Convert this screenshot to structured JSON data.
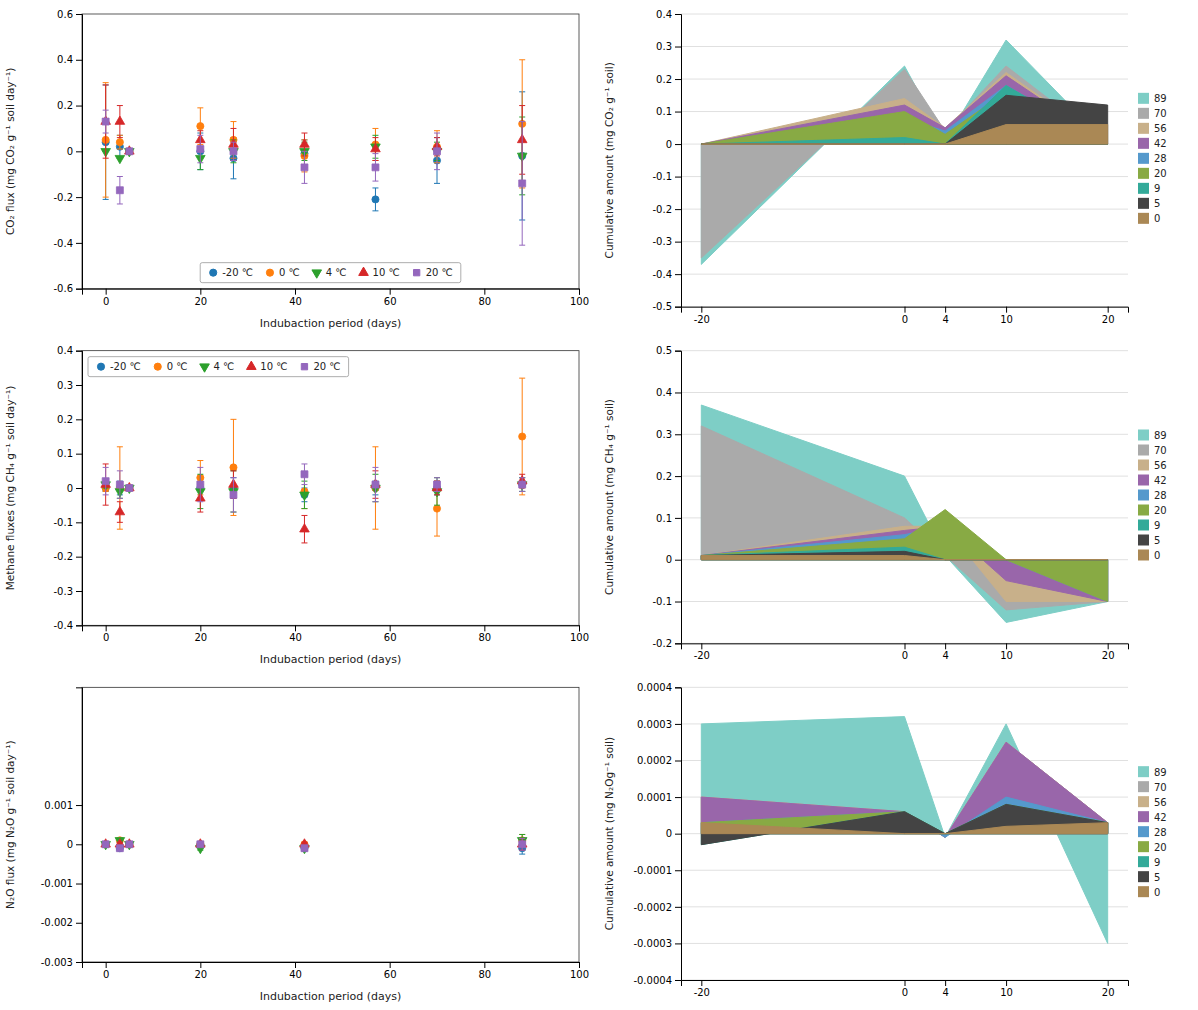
{
  "chart_data": [
    {
      "type": "scatter",
      "xlabel": "Indubaction period (days)",
      "ylabel": "CO₂ flux (mg CO₂ g⁻¹ soil day⁻¹)",
      "x": [
        0,
        3,
        5,
        20,
        27,
        42,
        57,
        70,
        88
      ],
      "series": [
        {
          "name": "-20 ℃",
          "marker": "circle",
          "values": [
            0.04,
            0.02,
            0.0,
            0.0,
            -0.03,
            -0.01,
            -0.21,
            -0.04,
            -0.02
          ],
          "errors": [
            0.25,
            0.05,
            0.0,
            0.08,
            0.09,
            0.06,
            0.05,
            0.1,
            0.28
          ]
        },
        {
          "name": "0 ℃",
          "marker": "circle",
          "values": [
            0.05,
            0.04,
            0.0,
            0.11,
            0.05,
            -0.02,
            0.03,
            0.02,
            0.12
          ],
          "errors": [
            0.25,
            0.03,
            0.0,
            0.08,
            0.08,
            0.07,
            0.07,
            0.07,
            0.28
          ]
        },
        {
          "name": "4 ℃",
          "marker": "triangle-down",
          "values": [
            0.0,
            -0.03,
            0.0,
            -0.03,
            0.0,
            0.0,
            0.02,
            0.0,
            -0.02
          ],
          "errors": [
            0.0,
            0.0,
            0.0,
            0.05,
            0.05,
            0.04,
            0.05,
            0.04,
            0.17
          ]
        },
        {
          "name": "10 ℃",
          "marker": "triangle-up",
          "values": [
            0.13,
            0.13,
            0.0,
            0.05,
            0.03,
            0.03,
            0.01,
            0.02,
            0.05
          ],
          "errors": [
            0.16,
            0.07,
            0.0,
            0.04,
            0.07,
            0.05,
            0.05,
            0.04,
            0.15
          ]
        },
        {
          "name": "20 ℃",
          "marker": "square",
          "values": [
            0.13,
            -0.17,
            0.0,
            0.01,
            0.0,
            -0.07,
            -0.07,
            0.0,
            -0.14
          ],
          "errors": [
            0.05,
            0.06,
            0.0,
            0.06,
            0.04,
            0.07,
            0.06,
            0.08,
            0.27
          ]
        }
      ],
      "xlim": [
        -5,
        100
      ],
      "ylim": [
        -0.6,
        0.6
      ],
      "xticks": [
        0,
        20,
        40,
        60,
        80,
        100
      ],
      "yticks": [
        -0.6,
        -0.4,
        -0.2,
        0,
        0.2,
        0.4,
        0.6
      ],
      "grid": false,
      "legend": "lower center"
    },
    {
      "type": "area",
      "ylabel": "Cumulative amount (mg CO₂ g⁻¹ soil)",
      "x": [
        -20,
        0,
        4,
        10,
        20
      ],
      "series": [
        {
          "name": "89",
          "color": "#7ecec6",
          "values": [
            -0.37,
            0.24,
            0.01,
            0.32,
            0.0
          ]
        },
        {
          "name": "70",
          "color": "#aaaaaa",
          "values": [
            -0.35,
            0.23,
            0.04,
            0.24,
            0.0
          ]
        },
        {
          "name": "56",
          "color": "#c8b08a",
          "values": [
            0.0,
            0.14,
            0.05,
            0.22,
            0.0
          ]
        },
        {
          "name": "42",
          "color": "#9966aa",
          "values": [
            0.0,
            0.12,
            0.05,
            0.21,
            0.0
          ]
        },
        {
          "name": "28",
          "color": "#5599cc",
          "values": [
            0.0,
            0.08,
            0.04,
            0.18,
            0.0
          ]
        },
        {
          "name": "20",
          "color": "#88aa44",
          "values": [
            0.0,
            0.1,
            0.03,
            0.16,
            0.0
          ]
        },
        {
          "name": "9",
          "color": "#33aa99",
          "values": [
            0.0,
            0.02,
            0.0,
            0.18,
            0.0
          ]
        },
        {
          "name": "5",
          "color": "#444444",
          "values": [
            0.0,
            0.0,
            0.0,
            0.15,
            0.12
          ]
        },
        {
          "name": "0",
          "color": "#aa8855",
          "values": [
            0.0,
            0.0,
            0.0,
            0.06,
            0.06
          ]
        }
      ],
      "xlim": [
        -22,
        22
      ],
      "ylim": [
        -0.5,
        0.4
      ],
      "xticks": [
        -20,
        0,
        4,
        10,
        20
      ],
      "yticks": [
        -0.5,
        -0.4,
        -0.3,
        -0.2,
        -0.1,
        0.0,
        0.1,
        0.2,
        0.3,
        0.4
      ],
      "grid": true,
      "legend": "right"
    },
    {
      "type": "scatter",
      "xlabel": "Indubaction period (days)",
      "ylabel": "Methane fluxes (mg CH₄ g⁻¹ soil day⁻¹)",
      "x": [
        0,
        3,
        5,
        20,
        27,
        42,
        57,
        70,
        88
      ],
      "series": [
        {
          "name": "-20 ℃",
          "marker": "circle",
          "values": [
            0.0,
            0.0,
            0.0,
            0.0,
            0.0,
            -0.02,
            0.0,
            0.0,
            0.01
          ],
          "errors": [
            0.01,
            0.02,
            0.0,
            0.03,
            0.03,
            0.02,
            0.02,
            0.02,
            0.02
          ]
        },
        {
          "name": "0 ℃",
          "marker": "circle",
          "values": [
            0.0,
            0.0,
            0.0,
            0.03,
            0.06,
            -0.01,
            0.0,
            -0.06,
            0.15
          ],
          "errors": [
            0.01,
            0.12,
            0.0,
            0.05,
            0.14,
            0.05,
            0.12,
            0.08,
            0.17
          ]
        },
        {
          "name": "4 ℃",
          "marker": "triangle-down",
          "values": [
            0.01,
            -0.01,
            0.0,
            -0.01,
            -0.01,
            -0.02,
            0.0,
            -0.01,
            0.01
          ],
          "errors": [
            0.01,
            0.02,
            0.0,
            0.05,
            0.06,
            0.04,
            0.04,
            0.04,
            0.02
          ]
        },
        {
          "name": "10 ℃",
          "marker": "triangle-up",
          "values": [
            0.01,
            -0.07,
            0.0,
            -0.03,
            0.01,
            -0.12,
            0.01,
            0.0,
            0.02
          ],
          "errors": [
            0.06,
            0.03,
            0.0,
            0.04,
            0.04,
            0.04,
            0.04,
            0.02,
            0.02
          ]
        },
        {
          "name": "20 ℃",
          "marker": "square",
          "values": [
            0.02,
            0.01,
            0.0,
            0.01,
            -0.02,
            0.04,
            0.01,
            0.01,
            0.01
          ],
          "errors": [
            0.04,
            0.04,
            0.0,
            0.05,
            0.05,
            0.03,
            0.05,
            0.02,
            0.02
          ]
        }
      ],
      "xlim": [
        -5,
        100
      ],
      "ylim": [
        -0.4,
        0.4
      ],
      "xticks": [
        0,
        20,
        40,
        60,
        80,
        100
      ],
      "yticks": [
        -0.4,
        -0.3,
        -0.2,
        -0.1,
        0,
        0.1,
        0.2,
        0.3,
        0.4
      ],
      "grid": false,
      "legend": "upper left"
    },
    {
      "type": "area",
      "ylabel": "Cumulative amount (mg CH₄ g⁻¹ soil)",
      "x": [
        -20,
        0,
        4,
        10,
        20
      ],
      "series": [
        {
          "name": "89",
          "color": "#7ecec6",
          "values": [
            0.37,
            0.2,
            0.01,
            -0.15,
            -0.1
          ]
        },
        {
          "name": "70",
          "color": "#aaaaaa",
          "values": [
            0.32,
            0.1,
            0.01,
            -0.12,
            -0.1
          ]
        },
        {
          "name": "56",
          "color": "#c8b08a",
          "values": [
            0.01,
            0.08,
            0.08,
            -0.1,
            -0.1
          ]
        },
        {
          "name": "42",
          "color": "#9966aa",
          "values": [
            0.01,
            0.07,
            0.08,
            -0.05,
            -0.1
          ]
        },
        {
          "name": "28",
          "color": "#5599cc",
          "values": [
            0.01,
            0.06,
            0.08,
            0.0,
            -0.1
          ]
        },
        {
          "name": "20",
          "color": "#88aa44",
          "values": [
            0.01,
            0.05,
            0.12,
            0.0,
            -0.1
          ]
        },
        {
          "name": "9",
          "color": "#33aa99",
          "values": [
            0.01,
            0.03,
            0.0,
            0.0,
            0.0
          ]
        },
        {
          "name": "5",
          "color": "#444444",
          "values": [
            0.01,
            0.02,
            0.0,
            0.0,
            0.0
          ]
        },
        {
          "name": "0",
          "color": "#aa8855",
          "values": [
            0.01,
            0.01,
            0.0,
            0.0,
            0.0
          ]
        }
      ],
      "xlim": [
        -22,
        22
      ],
      "ylim": [
        -0.2,
        0.5
      ],
      "xticks": [
        -20,
        0,
        4,
        10,
        20
      ],
      "yticks": [
        -0.2,
        -0.1,
        0.0,
        0.1,
        0.2,
        0.3,
        0.4,
        0.5
      ],
      "grid": true,
      "legend": "right"
    },
    {
      "type": "scatter",
      "xlabel": "Indubaction period (days)",
      "ylabel": "N₂O flux (mg N₂O g⁻¹ soil day⁻¹)",
      "x": [
        0,
        3,
        5,
        20,
        42,
        88
      ],
      "series": [
        {
          "name": "-20 ℃",
          "marker": "circle",
          "values": [
            0.0,
            -0.0001,
            0.0,
            0.0,
            -0.0001,
            -0.0001
          ],
          "errors": [
            5e-05,
            5e-05,
            2e-05,
            5e-05,
            5e-05,
            0.00015
          ]
        },
        {
          "name": "0 ℃",
          "marker": "circle",
          "values": [
            0.0,
            0.0001,
            0.0,
            0.0,
            0.0,
            0.0001
          ],
          "errors": [
            5e-05,
            5e-05,
            2e-05,
            5e-05,
            5e-05,
            0.00015
          ]
        },
        {
          "name": "4 ℃",
          "marker": "triangle-down",
          "values": [
            0.0,
            0.0001,
            0.0,
            -0.0001,
            -0.0001,
            0.0001
          ],
          "errors": [
            5e-05,
            5e-05,
            2e-05,
            5e-05,
            5e-05,
            0.00015
          ]
        },
        {
          "name": "10 ℃",
          "marker": "triangle-up",
          "values": [
            0.0,
            0.0,
            0.0,
            0.0,
            0.0,
            0.0
          ],
          "errors": [
            5e-05,
            5e-05,
            2e-05,
            5e-05,
            5e-05,
            0.00015
          ]
        },
        {
          "name": "20 ℃",
          "marker": "square",
          "values": [
            0.0,
            -0.0001,
            0.0,
            0.0,
            -0.0001,
            0.0
          ],
          "errors": [
            5e-05,
            5e-05,
            2e-05,
            5e-05,
            5e-05,
            0.00015
          ]
        }
      ],
      "xlim": [
        -5,
        100
      ],
      "ylim": [
        -0.003,
        0.004
      ],
      "xticks": [
        0,
        20,
        40,
        60,
        80,
        100
      ],
      "yticks": [
        -0.003,
        -0.002,
        -0.001,
        0.0,
        0.001
      ],
      "grid": false
    },
    {
      "type": "area",
      "ylabel": "Cumulative amount (mg N₂Og⁻¹ soil)",
      "x": [
        -20,
        0,
        4,
        10,
        20
      ],
      "series": [
        {
          "name": "89",
          "color": "#7ecec6",
          "values": [
            0.0003,
            0.00032,
            -1e-05,
            0.0003,
            -0.0003
          ]
        },
        {
          "name": "70",
          "color": "#aaaaaa",
          "values": [
            0.0001,
            6e-05,
            -1e-05,
            0.00025,
            3e-05
          ]
        },
        {
          "name": "56",
          "color": "#c8b08a",
          "values": [
            0.0001,
            6e-05,
            -1e-05,
            0.00025,
            3e-05
          ]
        },
        {
          "name": "42",
          "color": "#9966aa",
          "values": [
            0.0001,
            6e-05,
            -1e-05,
            0.00025,
            3e-05
          ]
        },
        {
          "name": "28",
          "color": "#5599cc",
          "values": [
            3e-05,
            6e-05,
            -1e-05,
            0.0001,
            3e-05
          ]
        },
        {
          "name": "20",
          "color": "#88aa44",
          "values": [
            3e-05,
            6e-05,
            0.0,
            8e-05,
            3e-05
          ]
        },
        {
          "name": "9",
          "color": "#33aa99",
          "values": [
            -3e-05,
            6e-05,
            0.0,
            8e-05,
            3e-05
          ]
        },
        {
          "name": "5",
          "color": "#444444",
          "values": [
            -3e-05,
            6e-05,
            0.0,
            8e-05,
            3e-05
          ]
        },
        {
          "name": "0",
          "color": "#aa8855",
          "values": [
            3e-05,
            0.0,
            0.0,
            2e-05,
            3e-05
          ]
        }
      ],
      "xlim": [
        -22,
        22
      ],
      "ylim": [
        -0.0004,
        0.0004
      ],
      "xticks": [
        -20,
        0,
        4,
        10,
        20
      ],
      "yticks": [
        -0.0004,
        -0.0003,
        -0.0002,
        -0.0001,
        0.0,
        0.0001,
        0.0002,
        0.0003,
        0.0004
      ],
      "grid": true,
      "legend": "right"
    }
  ]
}
